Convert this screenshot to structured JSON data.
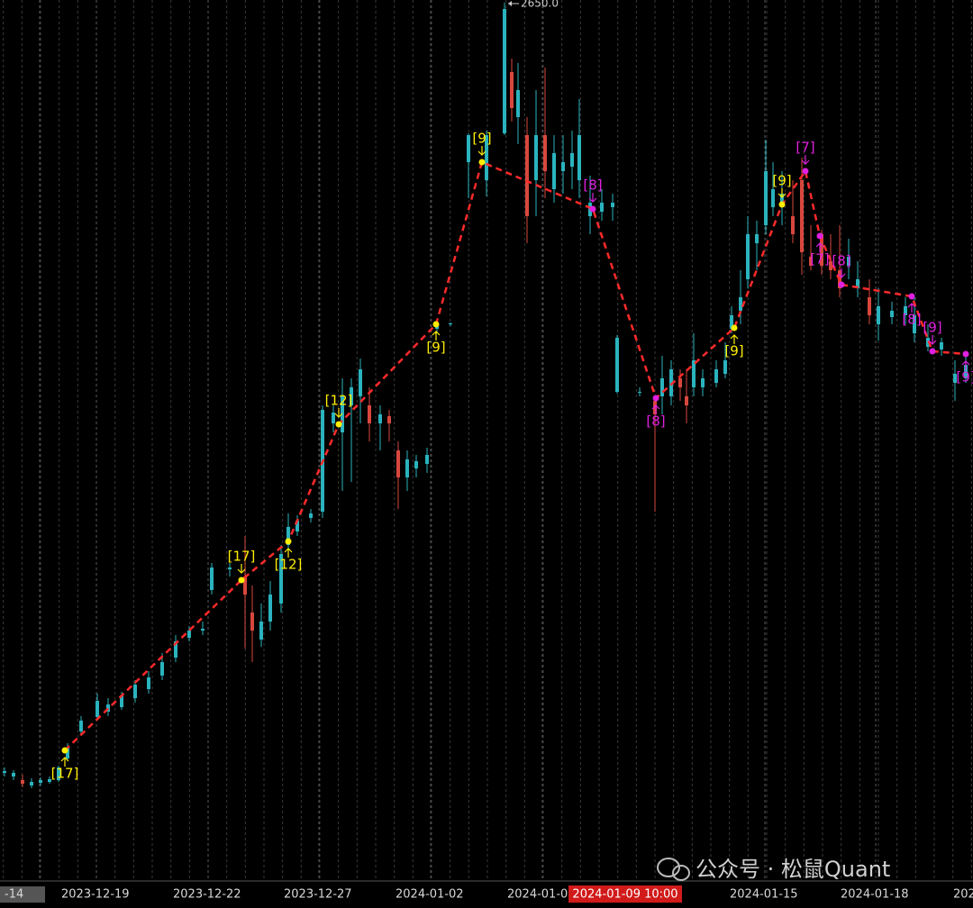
{
  "chart_data": {
    "type": "candlestick",
    "xlim": [
      0,
      540
    ],
    "ylim": [
      1678,
      2650
    ],
    "xticks": [
      {
        "value": 22,
        "label": "-14"
      },
      {
        "value": 53.5,
        "label": "2023-12-19"
      },
      {
        "value": 115.5,
        "label": "2023-12-22"
      },
      {
        "value": 177,
        "label": "2023-12-27"
      },
      {
        "value": 239,
        "label": "2024-01-02"
      },
      {
        "value": 301,
        "label": "2024-01-0"
      },
      {
        "value": 424.5,
        "label": "2024-01-15"
      },
      {
        "value": 486,
        "label": "2024-01-18"
      },
      {
        "value": 548.5,
        "label": "202"
      }
    ],
    "grid": true,
    "up_color": "#2ab3be",
    "down_color": "#d8473d",
    "x": [
      2.5,
      7.5,
      12.5,
      17.5,
      22.5,
      27.5,
      32.5,
      37.5,
      45,
      54,
      60,
      67.5,
      75,
      82.5,
      90,
      97.5,
      105,
      112.5,
      117.5,
      127.5,
      136,
      140,
      145,
      150,
      156,
      160,
      165,
      172.5,
      179,
      185,
      190,
      195,
      200,
      205,
      211,
      216,
      221,
      226,
      231,
      237,
      242.5,
      250,
      260,
      270,
      280,
      284,
      287.5,
      292.5,
      297.5,
      302.5,
      307.5,
      312.5,
      317.5,
      321.5,
      327.5,
      334,
      340,
      342.5,
      355,
      363.5,
      367.5,
      372.5,
      377.5,
      381,
      385,
      390,
      397.5,
      402.5,
      406,
      411,
      415,
      420,
      425,
      429,
      434,
      440,
      445,
      450,
      456,
      461,
      466,
      471,
      476,
      482.5,
      487.5,
      495,
      502.5,
      507.5,
      515,
      522.5,
      530,
      536
    ],
    "open": [
      1795,
      1791,
      1787,
      1781,
      1784,
      1785,
      1787,
      1811,
      1841,
      1857,
      1863,
      1868,
      1878,
      1888,
      1903,
      1923,
      1945,
      1953,
      1998,
      2021,
      2013,
      1973,
      1943,
      1963,
      1983,
      2048,
      2063,
      2078,
      2085,
      2183,
      2173,
      2203,
      2213,
      2203,
      2183,
      2191,
      2153,
      2123,
      2133,
      2138,
      2288,
      2293,
      2473,
      2453,
      2505,
      2573,
      2523,
      2503,
      2453,
      2503,
      2443,
      2463,
      2468,
      2453,
      2413,
      2418,
      2423,
      2218,
      2217,
      2208,
      2213,
      2213,
      2233,
      2213,
      2223,
      2223,
      2228,
      2238,
      2288,
      2308,
      2343,
      2383,
      2403,
      2423,
      2423,
      2413,
      2453,
      2368,
      2393,
      2363,
      2353,
      2358,
      2333,
      2323,
      2293,
      2301,
      2303,
      2283,
      2268,
      2265,
      2228,
      2233
    ],
    "high": [
      1801,
      1798,
      1793,
      1789,
      1790,
      1791,
      1803,
      1828,
      1858,
      1883,
      1878,
      1885,
      1898,
      1908,
      1928,
      1948,
      1958,
      1963,
      2028,
      2028,
      2058,
      2003,
      1983,
      2008,
      2048,
      2083,
      2081,
      2088,
      2203,
      2203,
      2233,
      2233,
      2255,
      2223,
      2203,
      2198,
      2163,
      2153,
      2148,
      2156,
      2295,
      2295,
      2505,
      2508,
      2650,
      2588,
      2583,
      2523,
      2553,
      2578,
      2503,
      2503,
      2508,
      2543,
      2458,
      2443,
      2438,
      2281,
      2223,
      2213,
      2258,
      2253,
      2243,
      2243,
      2283,
      2243,
      2253,
      2273,
      2313,
      2353,
      2413,
      2408,
      2498,
      2473,
      2463,
      2453,
      2478,
      2403,
      2398,
      2393,
      2403,
      2388,
      2363,
      2343,
      2333,
      2318,
      2323,
      2323,
      2293,
      2278,
      2253,
      2258
    ],
    "low": [
      1791,
      1787,
      1779,
      1778,
      1781,
      1783,
      1785,
      1808,
      1838,
      1853,
      1858,
      1865,
      1873,
      1883,
      1898,
      1918,
      1941,
      1948,
      1993,
      2013,
      1933,
      1918,
      1935,
      1953,
      1973,
      2043,
      2058,
      2073,
      2078,
      2173,
      2108,
      2118,
      2183,
      2163,
      2153,
      2163,
      2088,
      2108,
      2123,
      2128,
      2283,
      2291,
      2433,
      2435,
      2503,
      2518,
      2493,
      2383,
      2413,
      2433,
      2428,
      2438,
      2443,
      2433,
      2393,
      2408,
      2408,
      2216,
      2213,
      2085,
      2193,
      2203,
      2208,
      2183,
      2213,
      2213,
      2223,
      2233,
      2283,
      2293,
      2333,
      2353,
      2393,
      2413,
      2403,
      2383,
      2348,
      2353,
      2348,
      2343,
      2323,
      2343,
      2323,
      2293,
      2275,
      2293,
      2293,
      2273,
      2263,
      2258,
      2208,
      2228
    ],
    "close": [
      1797,
      1795,
      1783,
      1785,
      1787,
      1788,
      1801,
      1823,
      1853,
      1875,
      1871,
      1881,
      1893,
      1901,
      1918,
      1941,
      1953,
      1955,
      2023,
      2023,
      1993,
      1953,
      1963,
      1993,
      2038,
      2068,
      2075,
      2083,
      2198,
      2195,
      2213,
      2223,
      2243,
      2183,
      2193,
      2183,
      2123,
      2143,
      2141,
      2148,
      2293,
      2294,
      2503,
      2503,
      2643,
      2533,
      2553,
      2413,
      2503,
      2463,
      2483,
      2473,
      2483,
      2503,
      2428,
      2428,
      2428,
      2278,
      2218,
      2193,
      2233,
      2243,
      2223,
      2203,
      2253,
      2233,
      2243,
      2253,
      2303,
      2323,
      2393,
      2393,
      2463,
      2443,
      2438,
      2393,
      2373,
      2358,
      2358,
      2353,
      2333,
      2368,
      2343,
      2303,
      2313,
      2308,
      2313,
      2303,
      2278,
      2273,
      2238,
      2248
    ],
    "max_marker": {
      "x": 280,
      "value": 2650,
      "label": "2650.0"
    },
    "zigzag": {
      "color": "#ff2a2a",
      "x": [
        36,
        134,
        160,
        188,
        242,
        267.5,
        329,
        364,
        407.5,
        434,
        447,
        455,
        467,
        506,
        517.5,
        536
      ],
      "values": [
        1820,
        2009,
        2052,
        2182,
        2293,
        2473,
        2421,
        2211,
        2289,
        2426,
        2463,
        2391,
        2337,
        2324,
        2263,
        2260
      ],
      "labels": [
        "[17]",
        "[17]",
        "[12]",
        "[12]",
        "[9]",
        "[9]",
        "[8]",
        "[8]",
        "[9]",
        "[9]",
        "[7]",
        "[7]",
        "[8]",
        "[8]",
        "[9]",
        "[9]"
      ],
      "label_sides": [
        "below",
        "above",
        "below",
        "above",
        "below",
        "above",
        "above",
        "below",
        "below",
        "above",
        "above",
        "below",
        "above",
        "below",
        "above",
        "below"
      ],
      "colors": [
        "#ffee00",
        "#ffee00",
        "#ffee00",
        "#ffee00",
        "#ffee00",
        "#ffee00",
        "#e020e0",
        "#e020e0",
        "#ffee00",
        "#ffee00",
        "#e020e0",
        "#e020e0",
        "#e020e0",
        "#e020e0",
        "#e020e0",
        "#e020e0"
      ]
    },
    "cursor": {
      "x": 347,
      "label": "2024-01-09 10:00"
    }
  },
  "watermark": "公众号 · 松鼠Quant"
}
